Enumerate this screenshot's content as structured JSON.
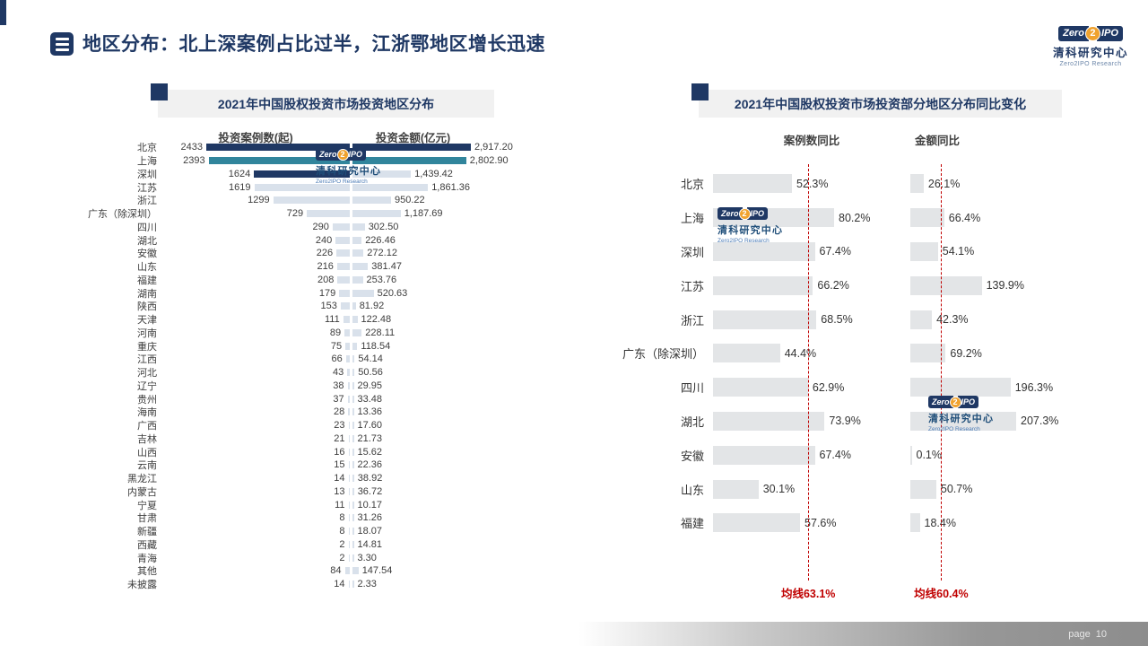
{
  "page": {
    "title": "地区分布：北上深案例占比过半，江浙鄂地区增长迅速",
    "page_label": "page",
    "page_number": "10"
  },
  "logo": {
    "zero": "Zero",
    "two": "2",
    "ipo": "IPO",
    "cn": "清科研究中心",
    "en": "Zero2IPO Research"
  },
  "colors": {
    "dark": "#1F3864",
    "teal": "#31859C",
    "light": "#D9E1EB",
    "gray_bar": "#E3E5E7",
    "red": "#C00000",
    "navy": "#1F3864"
  },
  "chart_data": [
    {
      "type": "bar",
      "title": "2021年中国股权投资市场投资地区分布",
      "col1_header": "投资案例数(起)",
      "col2_header": "投资金额(亿元)",
      "rows": [
        {
          "region": "北京",
          "cases": 2433,
          "amount": 2917.2,
          "amount_label": "2,917.20",
          "c1": "dark",
          "c2": "dark"
        },
        {
          "region": "上海",
          "cases": 2393,
          "amount": 2802.9,
          "amount_label": "2,802.90",
          "c1": "teal",
          "c2": "teal"
        },
        {
          "region": "深圳",
          "cases": 1624,
          "amount": 1439.42,
          "amount_label": "1,439.42",
          "c1": "dark",
          "c2": "light"
        },
        {
          "region": "江苏",
          "cases": 1619,
          "amount": 1861.36,
          "amount_label": "1,861.36",
          "c1": "light",
          "c2": "light"
        },
        {
          "region": "浙江",
          "cases": 1299,
          "amount": 950.22,
          "amount_label": "950.22",
          "c1": "light",
          "c2": "light"
        },
        {
          "region": "广东（除深圳）",
          "cases": 729,
          "amount": 1187.69,
          "amount_label": "1,187.69",
          "c1": "light",
          "c2": "light"
        },
        {
          "region": "四川",
          "cases": 290,
          "amount": 302.5,
          "amount_label": "302.50",
          "c1": "light",
          "c2": "light"
        },
        {
          "region": "湖北",
          "cases": 240,
          "amount": 226.46,
          "amount_label": "226.46",
          "c1": "light",
          "c2": "light"
        },
        {
          "region": "安徽",
          "cases": 226,
          "amount": 272.12,
          "amount_label": "272.12",
          "c1": "light",
          "c2": "light"
        },
        {
          "region": "山东",
          "cases": 216,
          "amount": 381.47,
          "amount_label": "381.47",
          "c1": "light",
          "c2": "light"
        },
        {
          "region": "福建",
          "cases": 208,
          "amount": 253.76,
          "amount_label": "253.76",
          "c1": "light",
          "c2": "light"
        },
        {
          "region": "湖南",
          "cases": 179,
          "amount": 520.63,
          "amount_label": "520.63",
          "c1": "light",
          "c2": "light"
        },
        {
          "region": "陕西",
          "cases": 153,
          "amount": 81.92,
          "amount_label": "81.92",
          "c1": "light",
          "c2": "light"
        },
        {
          "region": "天津",
          "cases": 111,
          "amount": 122.48,
          "amount_label": "122.48",
          "c1": "light",
          "c2": "light"
        },
        {
          "region": "河南",
          "cases": 89,
          "amount": 228.11,
          "amount_label": "228.11",
          "c1": "light",
          "c2": "light"
        },
        {
          "region": "重庆",
          "cases": 75,
          "amount": 118.54,
          "amount_label": "118.54",
          "c1": "light",
          "c2": "light"
        },
        {
          "region": "江西",
          "cases": 66,
          "amount": 54.14,
          "amount_label": "54.14",
          "c1": "light",
          "c2": "light"
        },
        {
          "region": "河北",
          "cases": 43,
          "amount": 50.56,
          "amount_label": "50.56",
          "c1": "light",
          "c2": "light"
        },
        {
          "region": "辽宁",
          "cases": 38,
          "amount": 29.95,
          "amount_label": "29.95",
          "c1": "light",
          "c2": "light"
        },
        {
          "region": "贵州",
          "cases": 37,
          "amount": 33.48,
          "amount_label": "33.48",
          "c1": "light",
          "c2": "light"
        },
        {
          "region": "海南",
          "cases": 28,
          "amount": 13.36,
          "amount_label": "13.36",
          "c1": "light",
          "c2": "light"
        },
        {
          "region": "广西",
          "cases": 23,
          "amount": 17.6,
          "amount_label": "17.60",
          "c1": "light",
          "c2": "light"
        },
        {
          "region": "吉林",
          "cases": 21,
          "amount": 21.73,
          "amount_label": "21.73",
          "c1": "light",
          "c2": "light"
        },
        {
          "region": "山西",
          "cases": 16,
          "amount": 15.62,
          "amount_label": "15.62",
          "c1": "light",
          "c2": "light"
        },
        {
          "region": "云南",
          "cases": 15,
          "amount": 22.36,
          "amount_label": "22.36",
          "c1": "light",
          "c2": "light"
        },
        {
          "region": "黑龙江",
          "cases": 14,
          "amount": 38.92,
          "amount_label": "38.92",
          "c1": "light",
          "c2": "light"
        },
        {
          "region": "内蒙古",
          "cases": 13,
          "amount": 36.72,
          "amount_label": "36.72",
          "c1": "light",
          "c2": "light"
        },
        {
          "region": "宁夏",
          "cases": 11,
          "amount": 10.17,
          "amount_label": "10.17",
          "c1": "light",
          "c2": "light"
        },
        {
          "region": "甘肃",
          "cases": 8,
          "amount": 31.26,
          "amount_label": "31.26",
          "c1": "light",
          "c2": "light"
        },
        {
          "region": "新疆",
          "cases": 8,
          "amount": 18.07,
          "amount_label": "18.07",
          "c1": "light",
          "c2": "light"
        },
        {
          "region": "西藏",
          "cases": 2,
          "amount": 14.81,
          "amount_label": "14.81",
          "c1": "light",
          "c2": "light"
        },
        {
          "region": "青海",
          "cases": 2,
          "amount": 3.3,
          "amount_label": "3.30",
          "c1": "light",
          "c2": "light"
        },
        {
          "region": "其他",
          "cases": 84,
          "amount": 147.54,
          "amount_label": "147.54",
          "c1": "light",
          "c2": "light"
        },
        {
          "region": "未披露",
          "cases": 14,
          "amount": 2.33,
          "amount_label": "2.33",
          "c1": "light",
          "c2": "light"
        }
      ]
    },
    {
      "type": "bar",
      "title": "2021年中国股权投资市场投资部分地区分布同比变化",
      "col1_header": "案例数同比",
      "col2_header": "金额同比",
      "rows": [
        {
          "region": "北京",
          "case_yoy": 52.3,
          "amount_yoy": 26.1
        },
        {
          "region": "上海",
          "case_yoy": 80.2,
          "amount_yoy": 66.4
        },
        {
          "region": "深圳",
          "case_yoy": 67.4,
          "amount_yoy": 54.1
        },
        {
          "region": "江苏",
          "case_yoy": 66.2,
          "amount_yoy": 139.9
        },
        {
          "region": "浙江",
          "case_yoy": 68.5,
          "amount_yoy": 42.3
        },
        {
          "region": "广东（除深圳）",
          "case_yoy": 44.4,
          "amount_yoy": 69.2
        },
        {
          "region": "四川",
          "case_yoy": 62.9,
          "amount_yoy": 196.3
        },
        {
          "region": "湖北",
          "case_yoy": 73.9,
          "amount_yoy": 207.3
        },
        {
          "region": "安徽",
          "case_yoy": 67.4,
          "amount_yoy": 0.1
        },
        {
          "region": "山东",
          "case_yoy": 30.1,
          "amount_yoy": 50.7
        },
        {
          "region": "福建",
          "case_yoy": 57.6,
          "amount_yoy": 18.4
        }
      ],
      "avg_case_value": 63.1,
      "avg_amount_value": 60.4,
      "avg_case_label": "均线63.1%",
      "avg_amount_label": "均线60.4%"
    }
  ]
}
